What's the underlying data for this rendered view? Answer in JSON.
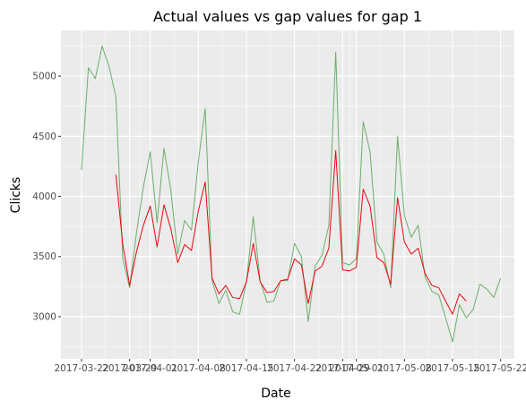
{
  "chart_data": {
    "type": "line",
    "title": "Actual values vs gap values for gap 1",
    "xlabel": "Date",
    "ylabel": "Clicks",
    "x_axis_type": "date",
    "xlim": [
      "2017-03-19",
      "2017-05-24"
    ],
    "ylim": [
      2650,
      5380
    ],
    "grid": true,
    "background": "#ebebeb",
    "gridline_color": "#ffffff",
    "x_ticks": [
      {
        "date": "2017-03-22",
        "label": "2017-03-22"
      },
      {
        "date": "2017-03-29",
        "label": "2017-03-29"
      },
      {
        "date": "2017-04-01",
        "label": "2017-04-01"
      },
      {
        "date": "2017-04-08",
        "label": "2017-04-08"
      },
      {
        "date": "2017-04-15",
        "label": "2017-04-15"
      },
      {
        "date": "2017-04-22",
        "label": "2017-04-22"
      },
      {
        "date": "2017-04-29",
        "label": "2017-04-29"
      },
      {
        "date": "2017-05-01",
        "label": "2017-05-01"
      },
      {
        "date": "2017-05-08",
        "label": "2017-05-08"
      },
      {
        "date": "2017-05-15",
        "label": "2017-05-15"
      },
      {
        "date": "2017-05-22",
        "label": "2017-05-22"
      }
    ],
    "y_ticks": [
      3000,
      3500,
      4000,
      4500,
      5000
    ],
    "series": [
      {
        "color": "#6bae6b",
        "points": [
          [
            "2017-03-22",
            4220
          ],
          [
            "2017-03-23",
            5070
          ],
          [
            "2017-03-24",
            4980
          ],
          [
            "2017-03-25",
            5250
          ],
          [
            "2017-03-26",
            5080
          ],
          [
            "2017-03-27",
            4830
          ],
          [
            "2017-03-28",
            3480
          ],
          [
            "2017-03-29",
            3240
          ],
          [
            "2017-03-30",
            3700
          ],
          [
            "2017-03-31",
            4080
          ],
          [
            "2017-04-01",
            4370
          ],
          [
            "2017-04-02",
            3780
          ],
          [
            "2017-04-03",
            4400
          ],
          [
            "2017-04-04",
            4050
          ],
          [
            "2017-04-05",
            3520
          ],
          [
            "2017-04-06",
            3800
          ],
          [
            "2017-04-07",
            3720
          ],
          [
            "2017-04-08",
            4290
          ],
          [
            "2017-04-09",
            4730
          ],
          [
            "2017-04-10",
            3300
          ],
          [
            "2017-04-11",
            3110
          ],
          [
            "2017-04-12",
            3220
          ],
          [
            "2017-04-13",
            3040
          ],
          [
            "2017-04-14",
            3020
          ],
          [
            "2017-04-15",
            3290
          ],
          [
            "2017-04-16",
            3830
          ],
          [
            "2017-04-17",
            3300
          ],
          [
            "2017-04-18",
            3120
          ],
          [
            "2017-04-19",
            3130
          ],
          [
            "2017-04-20",
            3300
          ],
          [
            "2017-04-21",
            3300
          ],
          [
            "2017-04-22",
            3610
          ],
          [
            "2017-04-23",
            3500
          ],
          [
            "2017-04-24",
            2960
          ],
          [
            "2017-04-25",
            3420
          ],
          [
            "2017-04-26",
            3510
          ],
          [
            "2017-04-27",
            3760
          ],
          [
            "2017-04-28",
            5200
          ],
          [
            "2017-04-29",
            3450
          ],
          [
            "2017-04-30",
            3430
          ],
          [
            "2017-05-01",
            3480
          ],
          [
            "2017-05-02",
            4620
          ],
          [
            "2017-05-03",
            4370
          ],
          [
            "2017-05-04",
            3620
          ],
          [
            "2017-05-05",
            3520
          ],
          [
            "2017-05-06",
            3240
          ],
          [
            "2017-05-07",
            4500
          ],
          [
            "2017-05-08",
            3840
          ],
          [
            "2017-05-09",
            3660
          ],
          [
            "2017-05-10",
            3760
          ],
          [
            "2017-05-11",
            3330
          ],
          [
            "2017-05-12",
            3210
          ],
          [
            "2017-05-13",
            3180
          ],
          [
            "2017-05-14",
            2990
          ],
          [
            "2017-05-15",
            2790
          ],
          [
            "2017-05-16",
            3100
          ],
          [
            "2017-05-17",
            2990
          ],
          [
            "2017-05-18",
            3060
          ],
          [
            "2017-05-19",
            3270
          ],
          [
            "2017-05-20",
            3230
          ],
          [
            "2017-05-21",
            3160
          ],
          [
            "2017-05-22",
            3320
          ]
        ]
      },
      {
        "color": "#e8080c",
        "points": [
          [
            "2017-03-27",
            4180
          ],
          [
            "2017-03-28",
            3600
          ],
          [
            "2017-03-29",
            3260
          ],
          [
            "2017-03-30",
            3540
          ],
          [
            "2017-03-31",
            3760
          ],
          [
            "2017-04-01",
            3920
          ],
          [
            "2017-04-02",
            3580
          ],
          [
            "2017-04-03",
            3930
          ],
          [
            "2017-04-04",
            3730
          ],
          [
            "2017-04-05",
            3450
          ],
          [
            "2017-04-06",
            3600
          ],
          [
            "2017-04-07",
            3550
          ],
          [
            "2017-04-08",
            3880
          ],
          [
            "2017-04-09",
            4120
          ],
          [
            "2017-04-10",
            3320
          ],
          [
            "2017-04-11",
            3190
          ],
          [
            "2017-04-12",
            3260
          ],
          [
            "2017-04-13",
            3160
          ],
          [
            "2017-04-14",
            3150
          ],
          [
            "2017-04-15",
            3290
          ],
          [
            "2017-04-16",
            3610
          ],
          [
            "2017-04-17",
            3290
          ],
          [
            "2017-04-18",
            3200
          ],
          [
            "2017-04-19",
            3210
          ],
          [
            "2017-04-20",
            3300
          ],
          [
            "2017-04-21",
            3310
          ],
          [
            "2017-04-22",
            3480
          ],
          [
            "2017-04-23",
            3430
          ],
          [
            "2017-04-24",
            3110
          ],
          [
            "2017-04-25",
            3380
          ],
          [
            "2017-04-26",
            3420
          ],
          [
            "2017-04-27",
            3570
          ],
          [
            "2017-04-28",
            4380
          ],
          [
            "2017-04-29",
            3390
          ],
          [
            "2017-04-30",
            3380
          ],
          [
            "2017-05-01",
            3410
          ],
          [
            "2017-05-02",
            4060
          ],
          [
            "2017-05-03",
            3920
          ],
          [
            "2017-05-04",
            3490
          ],
          [
            "2017-05-05",
            3450
          ],
          [
            "2017-05-06",
            3270
          ],
          [
            "2017-05-07",
            3990
          ],
          [
            "2017-05-08",
            3620
          ],
          [
            "2017-05-09",
            3520
          ],
          [
            "2017-05-10",
            3570
          ],
          [
            "2017-05-11",
            3360
          ],
          [
            "2017-05-12",
            3260
          ],
          [
            "2017-05-13",
            3240
          ],
          [
            "2017-05-14",
            3130
          ],
          [
            "2017-05-15",
            3020
          ],
          [
            "2017-05-16",
            3190
          ],
          [
            "2017-05-17",
            3130
          ]
        ]
      }
    ]
  }
}
